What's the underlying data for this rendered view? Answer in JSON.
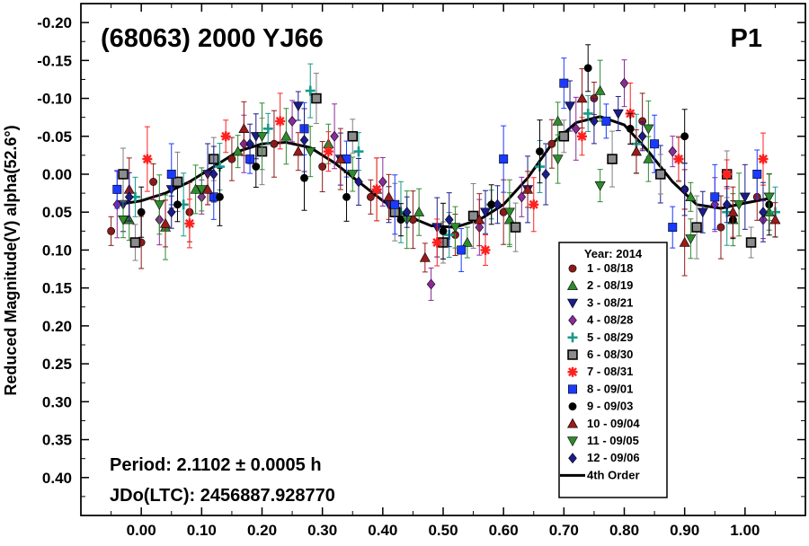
{
  "chart_data": {
    "type": "scatter",
    "title": "(68063) 2000 YJ66",
    "corner_label": "P1",
    "ylabel": "Reduced Magnitude(V) alpha(52.6°)",
    "xlabel": "",
    "xlim": [
      -0.1,
      1.1
    ],
    "ylim": [
      0.45,
      -0.225
    ],
    "y_inverted": true,
    "x_ticks": [
      "0.00",
      "0.10",
      "0.20",
      "0.30",
      "0.40",
      "0.50",
      "0.60",
      "0.70",
      "0.80",
      "0.90",
      "1.00"
    ],
    "y_ticks": [
      "-0.20",
      "-0.15",
      "-0.10",
      "-0.05",
      "0.00",
      "0.05",
      "0.10",
      "0.15",
      "0.20",
      "0.25",
      "0.30",
      "0.35",
      "0.40"
    ],
    "annotations": {
      "period": "Period: 2.1102 ± 0.0005 h",
      "epoch": "JDo(LTC): 2456887.928770"
    },
    "legend": {
      "title": "Year: 2014",
      "placement": "bottom-right",
      "entries": [
        {
          "label": "1 - 08/18",
          "color": "#8b1a1a",
          "marker": "circle"
        },
        {
          "label": "2 - 08/19",
          "color": "#2e8b2e",
          "marker": "triangle-up"
        },
        {
          "label": "3 - 08/21",
          "color": "#1c1c8b",
          "marker": "triangle-down"
        },
        {
          "label": "4 - 08/28",
          "color": "#8b2a9b",
          "marker": "diamond"
        },
        {
          "label": "5 - 08/29",
          "color": "#1a9a8a",
          "marker": "plus"
        },
        {
          "label": "6 - 08/30",
          "color": "#7f7f7f",
          "marker": "square-gray"
        },
        {
          "label": "7 - 08/31",
          "color": "#ff2020",
          "marker": "asterisk"
        },
        {
          "label": "8 - 09/01",
          "color": "#1a3aff",
          "marker": "square"
        },
        {
          "label": "9 - 09/03",
          "color": "#000000",
          "marker": "circle"
        },
        {
          "label": "10 - 09/04",
          "color": "#9b1a1a",
          "marker": "triangle-up"
        },
        {
          "label": "11 - 09/05",
          "color": "#2e8b2e",
          "marker": "triangle-down"
        },
        {
          "label": "12 - 09/06",
          "color": "#1c1c8b",
          "marker": "diamond"
        },
        {
          "label": "4th Order",
          "color": "#000000",
          "marker": "line"
        }
      ]
    },
    "fit": {
      "name": "4th Order",
      "phase": [
        -0.04,
        0.0,
        0.04,
        0.08,
        0.12,
        0.16,
        0.2,
        0.24,
        0.28,
        0.32,
        0.36,
        0.4,
        0.44,
        0.48,
        0.52,
        0.56,
        0.6,
        0.64,
        0.68,
        0.72,
        0.76,
        0.8,
        0.84,
        0.88,
        0.92,
        0.96,
        1.0,
        1.04
      ],
      "mag": [
        0.04,
        0.035,
        0.025,
        0.01,
        -0.01,
        -0.03,
        -0.04,
        -0.042,
        -0.035,
        -0.015,
        0.01,
        0.035,
        0.055,
        0.068,
        0.07,
        0.06,
        0.04,
        0.005,
        -0.04,
        -0.068,
        -0.076,
        -0.065,
        -0.03,
        0.01,
        0.04,
        0.045,
        0.038,
        0.032
      ]
    },
    "series": [
      {
        "name": "1 - 08/18",
        "points": [
          [
            -0.05,
            0.075
          ],
          [
            0.0,
            0.09
          ],
          [
            0.02,
            0.01
          ],
          [
            0.08,
            0.05
          ],
          [
            0.15,
            -0.02
          ],
          [
            0.22,
            -0.04
          ],
          [
            0.3,
            -0.01
          ],
          [
            0.38,
            0.03
          ],
          [
            0.45,
            0.06
          ],
          [
            0.52,
            0.08
          ],
          [
            0.6,
            0.05
          ],
          [
            0.68,
            -0.04
          ],
          [
            0.75,
            -0.1
          ],
          [
            0.83,
            -0.07
          ],
          [
            0.9,
            0.02
          ],
          [
            0.96,
            0.07
          ],
          [
            1.02,
            0.03
          ]
        ]
      },
      {
        "name": "2 - 08/19",
        "points": [
          [
            -0.02,
            0.06
          ],
          [
            0.04,
            0.07
          ],
          [
            0.09,
            0.02
          ],
          [
            0.16,
            -0.03
          ],
          [
            0.24,
            -0.05
          ],
          [
            0.31,
            -0.04
          ],
          [
            0.39,
            0.02
          ],
          [
            0.46,
            0.05
          ],
          [
            0.54,
            0.09
          ],
          [
            0.61,
            0.06
          ],
          [
            0.69,
            -0.07
          ],
          [
            0.76,
            -0.11
          ],
          [
            0.84,
            -0.02
          ],
          [
            0.91,
            0.03
          ],
          [
            0.98,
            0.06
          ],
          [
            1.04,
            0.05
          ]
        ]
      },
      {
        "name": "3 - 08/21",
        "points": [
          [
            -0.03,
            0.04
          ],
          [
            0.05,
            0.02
          ],
          [
            0.11,
            0.0
          ],
          [
            0.19,
            -0.05
          ],
          [
            0.26,
            -0.09
          ],
          [
            0.33,
            -0.02
          ],
          [
            0.41,
            0.04
          ],
          [
            0.49,
            0.07
          ],
          [
            0.57,
            0.05
          ],
          [
            0.64,
            0.02
          ],
          [
            0.71,
            -0.09
          ],
          [
            0.79,
            -0.08
          ],
          [
            0.86,
            0.0
          ],
          [
            0.93,
            0.05
          ],
          [
            1.0,
            0.03
          ]
        ]
      },
      {
        "name": "4 - 08/28",
        "points": [
          [
            -0.04,
            0.04
          ],
          [
            0.03,
            0.06
          ],
          [
            0.1,
            0.03
          ],
          [
            0.17,
            -0.04
          ],
          [
            0.25,
            -0.07
          ],
          [
            0.32,
            -0.05
          ],
          [
            0.4,
            0.01
          ],
          [
            0.48,
            0.145
          ],
          [
            0.56,
            0.07
          ],
          [
            0.63,
            0.03
          ],
          [
            0.72,
            -0.06
          ],
          [
            0.8,
            -0.12
          ],
          [
            0.88,
            -0.03
          ],
          [
            0.95,
            0.04
          ],
          [
            1.03,
            0.06
          ]
        ]
      },
      {
        "name": "5 - 08/29",
        "points": [
          [
            -0.01,
            0.03
          ],
          [
            0.07,
            0.04
          ],
          [
            0.13,
            -0.01
          ],
          [
            0.21,
            -0.06
          ],
          [
            0.28,
            -0.11
          ],
          [
            0.36,
            -0.03
          ],
          [
            0.43,
            0.05
          ],
          [
            0.51,
            0.08
          ],
          [
            0.58,
            0.04
          ],
          [
            0.66,
            -0.01
          ],
          [
            0.74,
            -0.08
          ],
          [
            0.82,
            -0.04
          ],
          [
            0.89,
            -0.02
          ],
          [
            0.97,
            0.05
          ],
          [
            1.05,
            0.05
          ]
        ]
      },
      {
        "name": "6 - 08/30",
        "points": [
          [
            -0.03,
            0.0
          ],
          [
            -0.01,
            0.09
          ],
          [
            0.06,
            0.01
          ],
          [
            0.12,
            -0.02
          ],
          [
            0.2,
            -0.03
          ],
          [
            0.29,
            -0.1
          ],
          [
            0.35,
            -0.05
          ],
          [
            0.42,
            0.05
          ],
          [
            0.5,
            0.09
          ],
          [
            0.55,
            0.055
          ],
          [
            0.62,
            0.07
          ],
          [
            0.7,
            -0.05
          ],
          [
            0.78,
            -0.02
          ],
          [
            0.86,
            0.0
          ],
          [
            0.92,
            0.07
          ],
          [
            0.97,
            0.0
          ],
          [
            1.01,
            0.09
          ]
        ]
      },
      {
        "name": "7 - 08/31",
        "points": [
          [
            0.01,
            -0.02
          ],
          [
            0.08,
            0.065
          ],
          [
            0.14,
            -0.05
          ],
          [
            0.23,
            -0.07
          ],
          [
            0.31,
            -0.03
          ],
          [
            0.39,
            0.02
          ],
          [
            0.49,
            0.09
          ],
          [
            0.57,
            0.1
          ],
          [
            0.65,
            0.04
          ],
          [
            0.73,
            -0.05
          ],
          [
            0.81,
            -0.08
          ],
          [
            0.89,
            -0.02
          ],
          [
            0.97,
            0.0
          ],
          [
            1.03,
            -0.02
          ]
        ]
      },
      {
        "name": "8 - 09/01",
        "points": [
          [
            -0.04,
            0.02
          ],
          [
            0.05,
            0.0
          ],
          [
            0.12,
            0.03
          ],
          [
            0.18,
            -0.02
          ],
          [
            0.27,
            -0.06
          ],
          [
            0.34,
            -0.02
          ],
          [
            0.42,
            0.04
          ],
          [
            0.53,
            0.1
          ],
          [
            0.6,
            -0.02
          ],
          [
            0.7,
            -0.12
          ],
          [
            0.77,
            -0.07
          ],
          [
            0.85,
            -0.04
          ],
          [
            0.88,
            0.07
          ],
          [
            0.95,
            0.03
          ],
          [
            1.02,
            0.0
          ]
        ]
      },
      {
        "name": "9 - 09/03",
        "points": [
          [
            0.0,
            0.05
          ],
          [
            0.06,
            0.04
          ],
          [
            0.13,
            0.03
          ],
          [
            0.19,
            -0.01
          ],
          [
            0.27,
            0.005
          ],
          [
            0.34,
            0.03
          ],
          [
            0.43,
            0.06
          ],
          [
            0.5,
            0.075
          ],
          [
            0.58,
            0.04
          ],
          [
            0.66,
            -0.03
          ],
          [
            0.74,
            -0.14
          ],
          [
            0.81,
            -0.06
          ],
          [
            0.9,
            -0.05
          ],
          [
            0.98,
            0.06
          ],
          [
            1.04,
            0.04
          ]
        ]
      },
      {
        "name": "10 - 09/04",
        "points": [
          [
            -0.02,
            0.02
          ],
          [
            0.04,
            0.065
          ],
          [
            0.11,
            0.02
          ],
          [
            0.17,
            -0.06
          ],
          [
            0.26,
            -0.03
          ],
          [
            0.33,
            -0.02
          ],
          [
            0.41,
            0.03
          ],
          [
            0.47,
            0.11
          ],
          [
            0.56,
            0.06
          ],
          [
            0.64,
            0.02
          ],
          [
            0.73,
            -0.1
          ],
          [
            0.82,
            -0.03
          ],
          [
            0.9,
            0.09
          ],
          [
            0.98,
            0.05
          ],
          [
            1.05,
            0.06
          ]
        ]
      },
      {
        "name": "11 - 09/05",
        "points": [
          [
            -0.03,
            0.06
          ],
          [
            0.03,
            0.04
          ],
          [
            0.1,
            0.02
          ],
          [
            0.2,
            -0.05
          ],
          [
            0.28,
            -0.03
          ],
          [
            0.35,
            0.0
          ],
          [
            0.44,
            0.06
          ],
          [
            0.52,
            0.07
          ],
          [
            0.61,
            0.05
          ],
          [
            0.69,
            -0.02
          ],
          [
            0.76,
            0.015
          ],
          [
            0.84,
            -0.06
          ],
          [
            0.91,
            0.085
          ],
          [
            0.99,
            0.04
          ],
          [
            1.04,
            0.03
          ]
        ]
      },
      {
        "name": "12 - 09/06",
        "points": [
          [
            -0.02,
            0.03
          ],
          [
            0.05,
            0.05
          ],
          [
            0.12,
            0.0
          ],
          [
            0.18,
            -0.04
          ],
          [
            0.27,
            -0.045
          ],
          [
            0.36,
            0.01
          ],
          [
            0.44,
            0.05
          ],
          [
            0.51,
            0.06
          ],
          [
            0.59,
            0.04
          ],
          [
            0.67,
            0.0
          ],
          [
            0.75,
            -0.07
          ],
          [
            0.83,
            -0.05
          ],
          [
            0.9,
            0.02
          ],
          [
            0.97,
            0.04
          ],
          [
            1.03,
            0.05
          ]
        ]
      }
    ]
  }
}
